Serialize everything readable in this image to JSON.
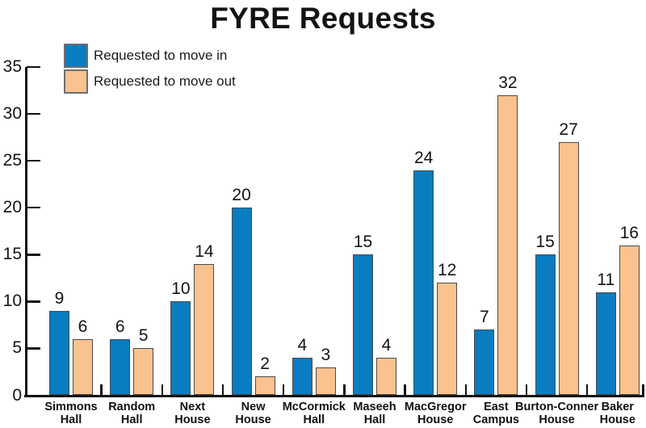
{
  "title": "FYRE Requests",
  "legend": [
    {
      "label": "Requested to move in",
      "color": "#0a7cc1"
    },
    {
      "label": "Requested to move out",
      "color": "#f9c28f"
    }
  ],
  "chart_data": {
    "type": "bar",
    "title": "FYRE Requests",
    "categories": [
      "Simmons Hall",
      "Random Hall",
      "Next House",
      "New House",
      "McCormick Hall",
      "Maseeh Hall",
      "MacGregor House",
      "East Campus",
      "Burton-Conner House",
      "Baker House"
    ],
    "series": [
      {
        "name": "Requested to move in",
        "color": "#0a7cc1",
        "values": [
          9,
          6,
          10,
          20,
          4,
          15,
          24,
          7,
          15,
          11
        ]
      },
      {
        "name": "Requested to move out",
        "color": "#f9c28f",
        "values": [
          6,
          5,
          14,
          2,
          3,
          4,
          12,
          32,
          27,
          16
        ]
      }
    ],
    "xlabel": "",
    "ylabel": "",
    "ylim": [
      0,
      35
    ],
    "yticks": [
      0,
      5,
      10,
      15,
      20,
      25,
      30,
      35
    ],
    "grid": false,
    "value_labels": true,
    "legend_position": "top-left",
    "bar_border_color": "#4a4a4c",
    "axis_color": "#111111",
    "text_color": "#141414"
  }
}
